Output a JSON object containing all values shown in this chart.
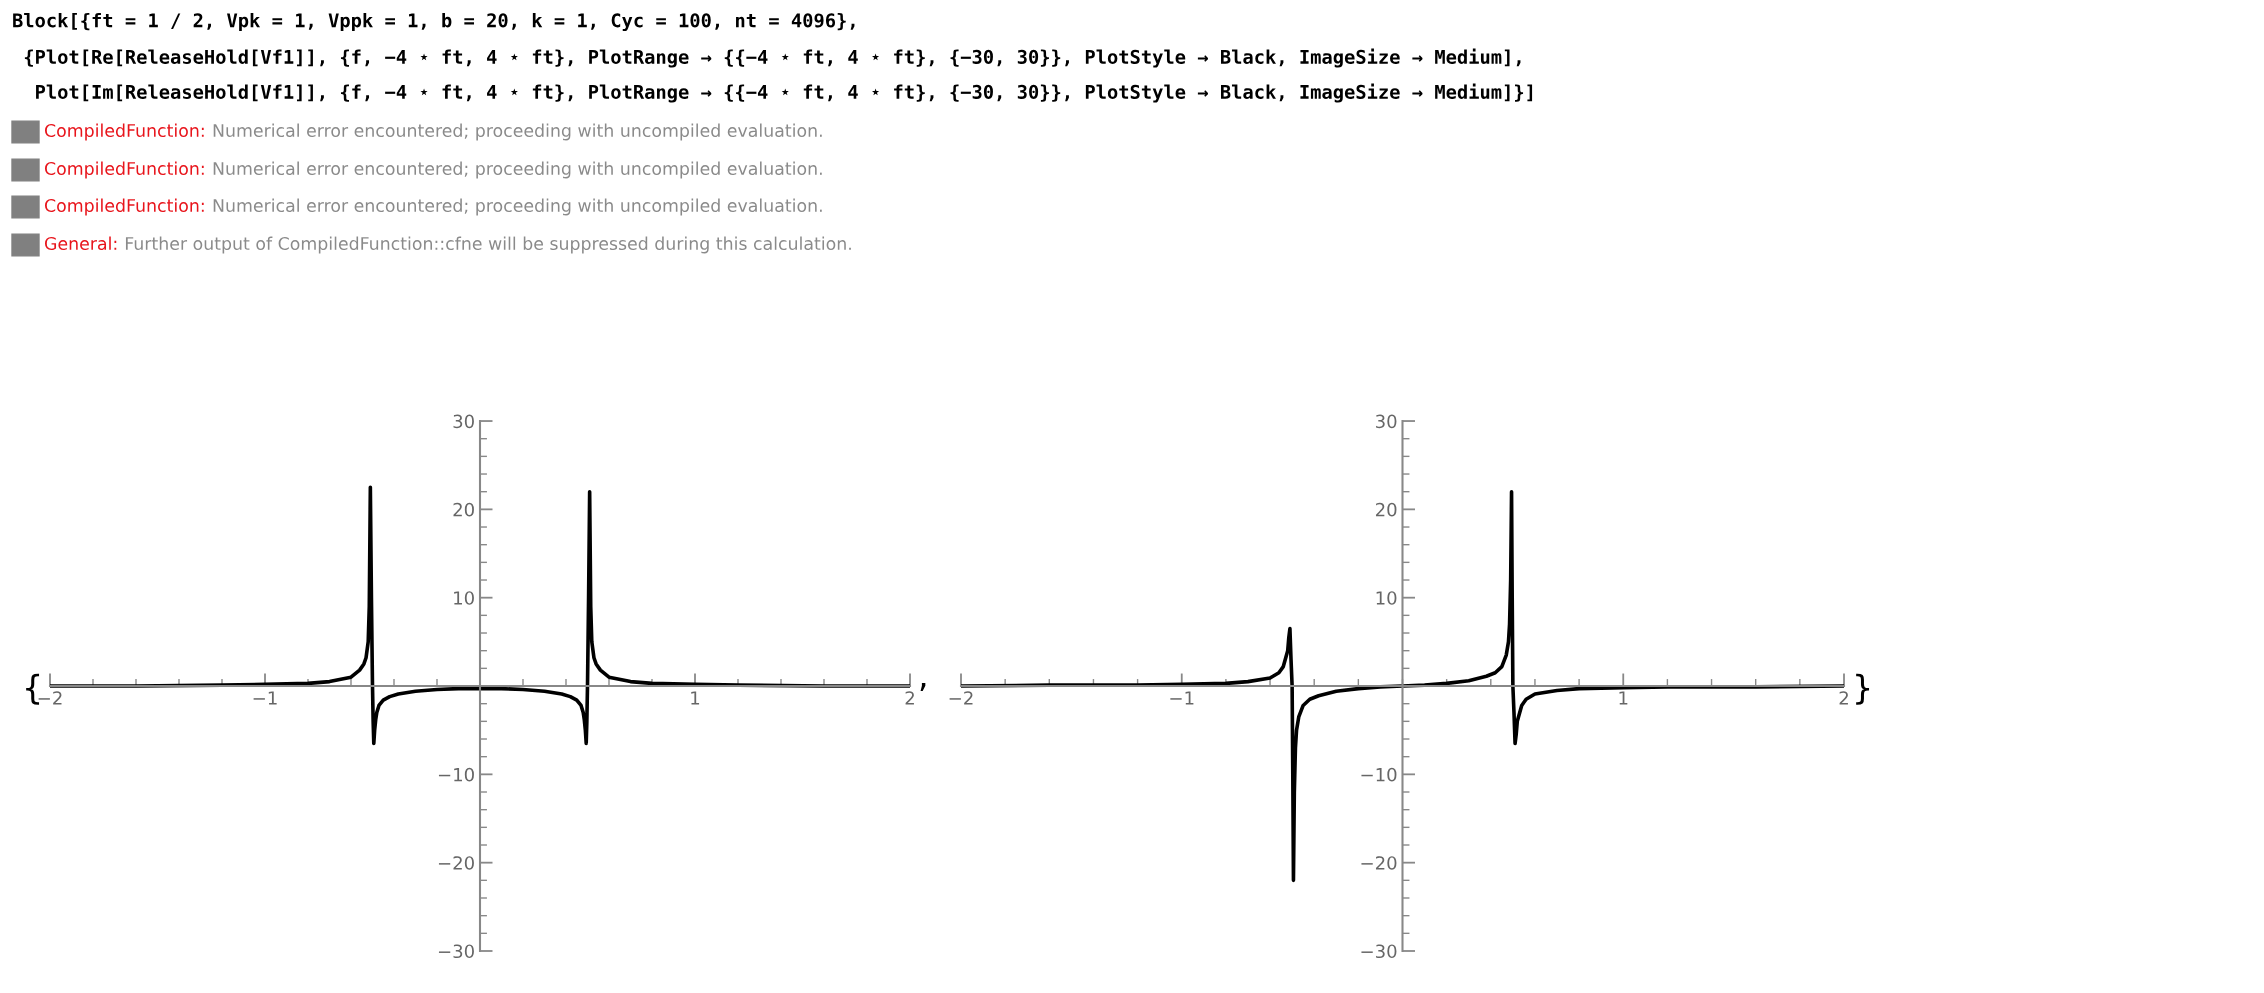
{
  "chart_data": [
    {
      "type": "line",
      "annotations": [
        "Block[{ft = 1 / 2, Vpk = 1, Vppk = 1, b = 20, k = 1, Cyc = 100, nt = 4096},",
        " {Plot[Re[ReleaseHold[Vf1]], {f, −4 ⋆ ft, 4 ⋆ ft}, PlotRange → {{−4 ⋆ ft, 4 ⋆ ft}, {−30, 30}}, PlotStyle → Black, ImageSize → Medium],",
        "  Plot[Im[ReleaseHold[Vf1]], {f, −4 ⋆ ft, 4 ⋆ ft}, PlotRange → {{−4 ⋆ ft, 4 ⋆ ft}, {−30, 30}}, PlotStyle → Black, ImageSize → Medium]}]",
        "CompiledFunction: Numerical error encountered; proceeding with uncompiled evaluation.",
        "CompiledFunction: Numerical error encountered; proceeding with uncompiled evaluation.",
        "CompiledFunction: Numerical error encountered; proceeding with uncompiled evaluation.",
        "General: Further output of CompiledFunction::cfne will be suppressed during this calculation.",
        "{",
        ","
      ],
      "xlim": [
        -2,
        2
      ],
      "ylim": [
        -30,
        30
      ],
      "xticks": [
        -2,
        -1,
        1,
        2
      ],
      "yticks": [
        -30,
        -20,
        -10,
        10,
        20,
        30
      ],
      "grid": false,
      "legend": false,
      "series": [
        {
          "color": "#000000",
          "x": [
            -2,
            -1.6,
            -1.2,
            -1.0,
            -0.8,
            -0.7,
            -0.6,
            -0.56,
            -0.54,
            -0.53,
            -0.52,
            -0.515,
            -0.51,
            -0.505,
            -0.5,
            -0.497,
            -0.494,
            -0.49,
            -0.485,
            -0.48,
            -0.47,
            -0.45,
            -0.42,
            -0.38,
            -0.3,
            -0.2,
            -0.1,
            0,
            0.1,
            0.2,
            0.3,
            0.38,
            0.42,
            0.45,
            0.47,
            0.48,
            0.485,
            0.49,
            0.494,
            0.497,
            0.5,
            0.505,
            0.51,
            0.515,
            0.52,
            0.53,
            0.54,
            0.56,
            0.6,
            0.7,
            0.8,
            1.0,
            1.2,
            1.6,
            2
          ],
          "values": [
            0,
            0,
            0.1,
            0.2,
            0.3,
            0.5,
            1,
            1.8,
            2.5,
            3.2,
            5,
            9,
            22.5,
            10,
            0,
            -4,
            -6.5,
            -5,
            -3.8,
            -3,
            -2.2,
            -1.6,
            -1.2,
            -0.9,
            -0.6,
            -0.4,
            -0.3,
            -0.3,
            -0.3,
            -0.4,
            -0.6,
            -0.9,
            -1.2,
            -1.6,
            -2.2,
            -3,
            -3.8,
            -5,
            -6.5,
            -4,
            0,
            10,
            22,
            9,
            5,
            3.2,
            2.5,
            1.8,
            1,
            0.5,
            0.3,
            0.2,
            0.1,
            0,
            0
          ]
        }
      ]
    },
    {
      "type": "line",
      "annotations": [
        "}"
      ],
      "xlim": [
        -2,
        2
      ],
      "ylim": [
        -30,
        30
      ],
      "xticks": [
        -2,
        -1,
        1,
        2
      ],
      "yticks": [
        -30,
        -20,
        -10,
        10,
        20,
        30
      ],
      "grid": false,
      "legend": false,
      "series": [
        {
          "color": "#000000",
          "x": [
            -2,
            -1.6,
            -1.2,
            -1.0,
            -0.8,
            -0.7,
            -0.6,
            -0.56,
            -0.54,
            -0.52,
            -0.515,
            -0.51,
            -0.505,
            -0.5,
            -0.497,
            -0.494,
            -0.49,
            -0.485,
            -0.48,
            -0.47,
            -0.45,
            -0.42,
            -0.38,
            -0.3,
            -0.2,
            -0.1,
            0,
            0.1,
            0.2,
            0.3,
            0.38,
            0.42,
            0.45,
            0.47,
            0.48,
            0.485,
            0.49,
            0.494,
            0.497,
            0.5,
            0.505,
            0.51,
            0.515,
            0.52,
            0.54,
            0.56,
            0.6,
            0.7,
            0.8,
            1.0,
            1.2,
            1.6,
            2
          ],
          "values": [
            0,
            0.1,
            0.1,
            0.2,
            0.3,
            0.5,
            0.9,
            1.5,
            2.2,
            4,
            5.5,
            6.5,
            3,
            0,
            -10,
            -22,
            -12,
            -7,
            -5,
            -3.5,
            -2.2,
            -1.5,
            -1.1,
            -0.6,
            -0.3,
            -0.1,
            0,
            0.1,
            0.3,
            0.6,
            1.1,
            1.5,
            2.2,
            3.5,
            5,
            7,
            12,
            22,
            10,
            0,
            -3,
            -6.5,
            -5.5,
            -4,
            -2.2,
            -1.5,
            -0.9,
            -0.5,
            -0.3,
            -0.2,
            -0.1,
            -0.1,
            0
          ]
        }
      ]
    }
  ]
}
